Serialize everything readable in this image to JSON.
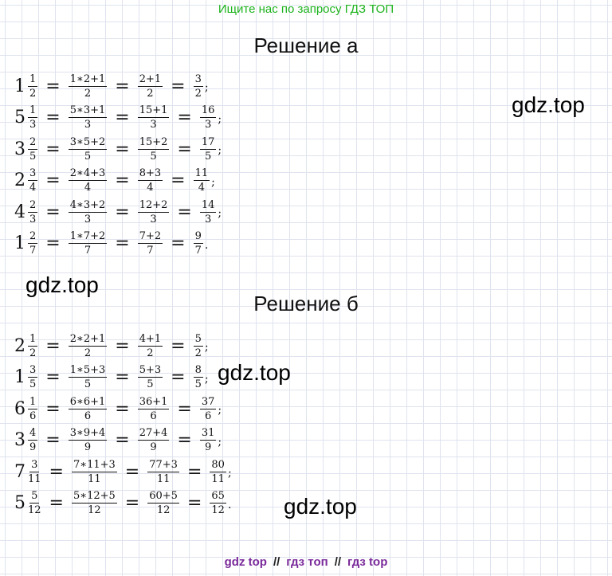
{
  "top_banner": "Ищите нас по запросу ГДЗ ТОП",
  "bottom_banner": {
    "a": "gdz top",
    "sep1": "//",
    "b": "гдз топ",
    "sep2": "//",
    "c": "гдз top"
  },
  "section_a": {
    "title": "Решение а",
    "rows": [
      {
        "whole": "1",
        "fn": "1",
        "fd": "2",
        "s1n": "1∗2+1",
        "s1d": "2",
        "s2n": "2+1",
        "s2d": "2",
        "rn": "3",
        "rd": "2",
        "p": ";"
      },
      {
        "whole": "5",
        "fn": "1",
        "fd": "3",
        "s1n": "5∗3+1",
        "s1d": "3",
        "s2n": "15+1",
        "s2d": "3",
        "rn": "16",
        "rd": "3",
        "p": ";"
      },
      {
        "whole": "3",
        "fn": "2",
        "fd": "5",
        "s1n": "3∗5+2",
        "s1d": "5",
        "s2n": "15+2",
        "s2d": "5",
        "rn": "17",
        "rd": "5",
        "p": ";"
      },
      {
        "whole": "2",
        "fn": "3",
        "fd": "4",
        "s1n": "2∗4+3",
        "s1d": "4",
        "s2n": "8+3",
        "s2d": "4",
        "rn": "11",
        "rd": "4",
        "p": ";"
      },
      {
        "whole": "4",
        "fn": "2",
        "fd": "3",
        "s1n": "4∗3+2",
        "s1d": "3",
        "s2n": "12+2",
        "s2d": "3",
        "rn": "14",
        "rd": "3",
        "p": ";"
      },
      {
        "whole": "1",
        "fn": "2",
        "fd": "7",
        "s1n": "1∗7+2",
        "s1d": "7",
        "s2n": "7+2",
        "s2d": "7",
        "rn": "9",
        "rd": "7",
        "p": "."
      }
    ]
  },
  "section_b": {
    "title": "Решение б",
    "rows": [
      {
        "whole": "2",
        "fn": "1",
        "fd": "2",
        "s1n": "2∗2+1",
        "s1d": "2",
        "s2n": "4+1",
        "s2d": "2",
        "rn": "5",
        "rd": "2",
        "p": ";"
      },
      {
        "whole": "1",
        "fn": "3",
        "fd": "5",
        "s1n": "1∗5+3",
        "s1d": "5",
        "s2n": "5+3",
        "s2d": "5",
        "rn": "8",
        "rd": "5",
        "p": ";"
      },
      {
        "whole": "6",
        "fn": "1",
        "fd": "6",
        "s1n": "6∗6+1",
        "s1d": "6",
        "s2n": "36+1",
        "s2d": "6",
        "rn": "37",
        "rd": "6",
        "p": ";"
      },
      {
        "whole": "3",
        "fn": "4",
        "fd": "9",
        "s1n": "3∗9+4",
        "s1d": "9",
        "s2n": "27+4",
        "s2d": "9",
        "rn": "31",
        "rd": "9",
        "p": ";"
      },
      {
        "whole": "7",
        "fn": "3",
        "fd": "11",
        "s1n": "7∗11+3",
        "s1d": "11",
        "s2n": "77+3",
        "s2d": "11",
        "rn": "80",
        "rd": "11",
        "p": ";"
      },
      {
        "whole": "5",
        "fn": "5",
        "fd": "12",
        "s1n": "5∗12+5",
        "s1d": "12",
        "s2n": "60+5",
        "s2d": "12",
        "rn": "65",
        "rd": "12",
        "p": "."
      }
    ]
  },
  "watermark": "gdz.top"
}
